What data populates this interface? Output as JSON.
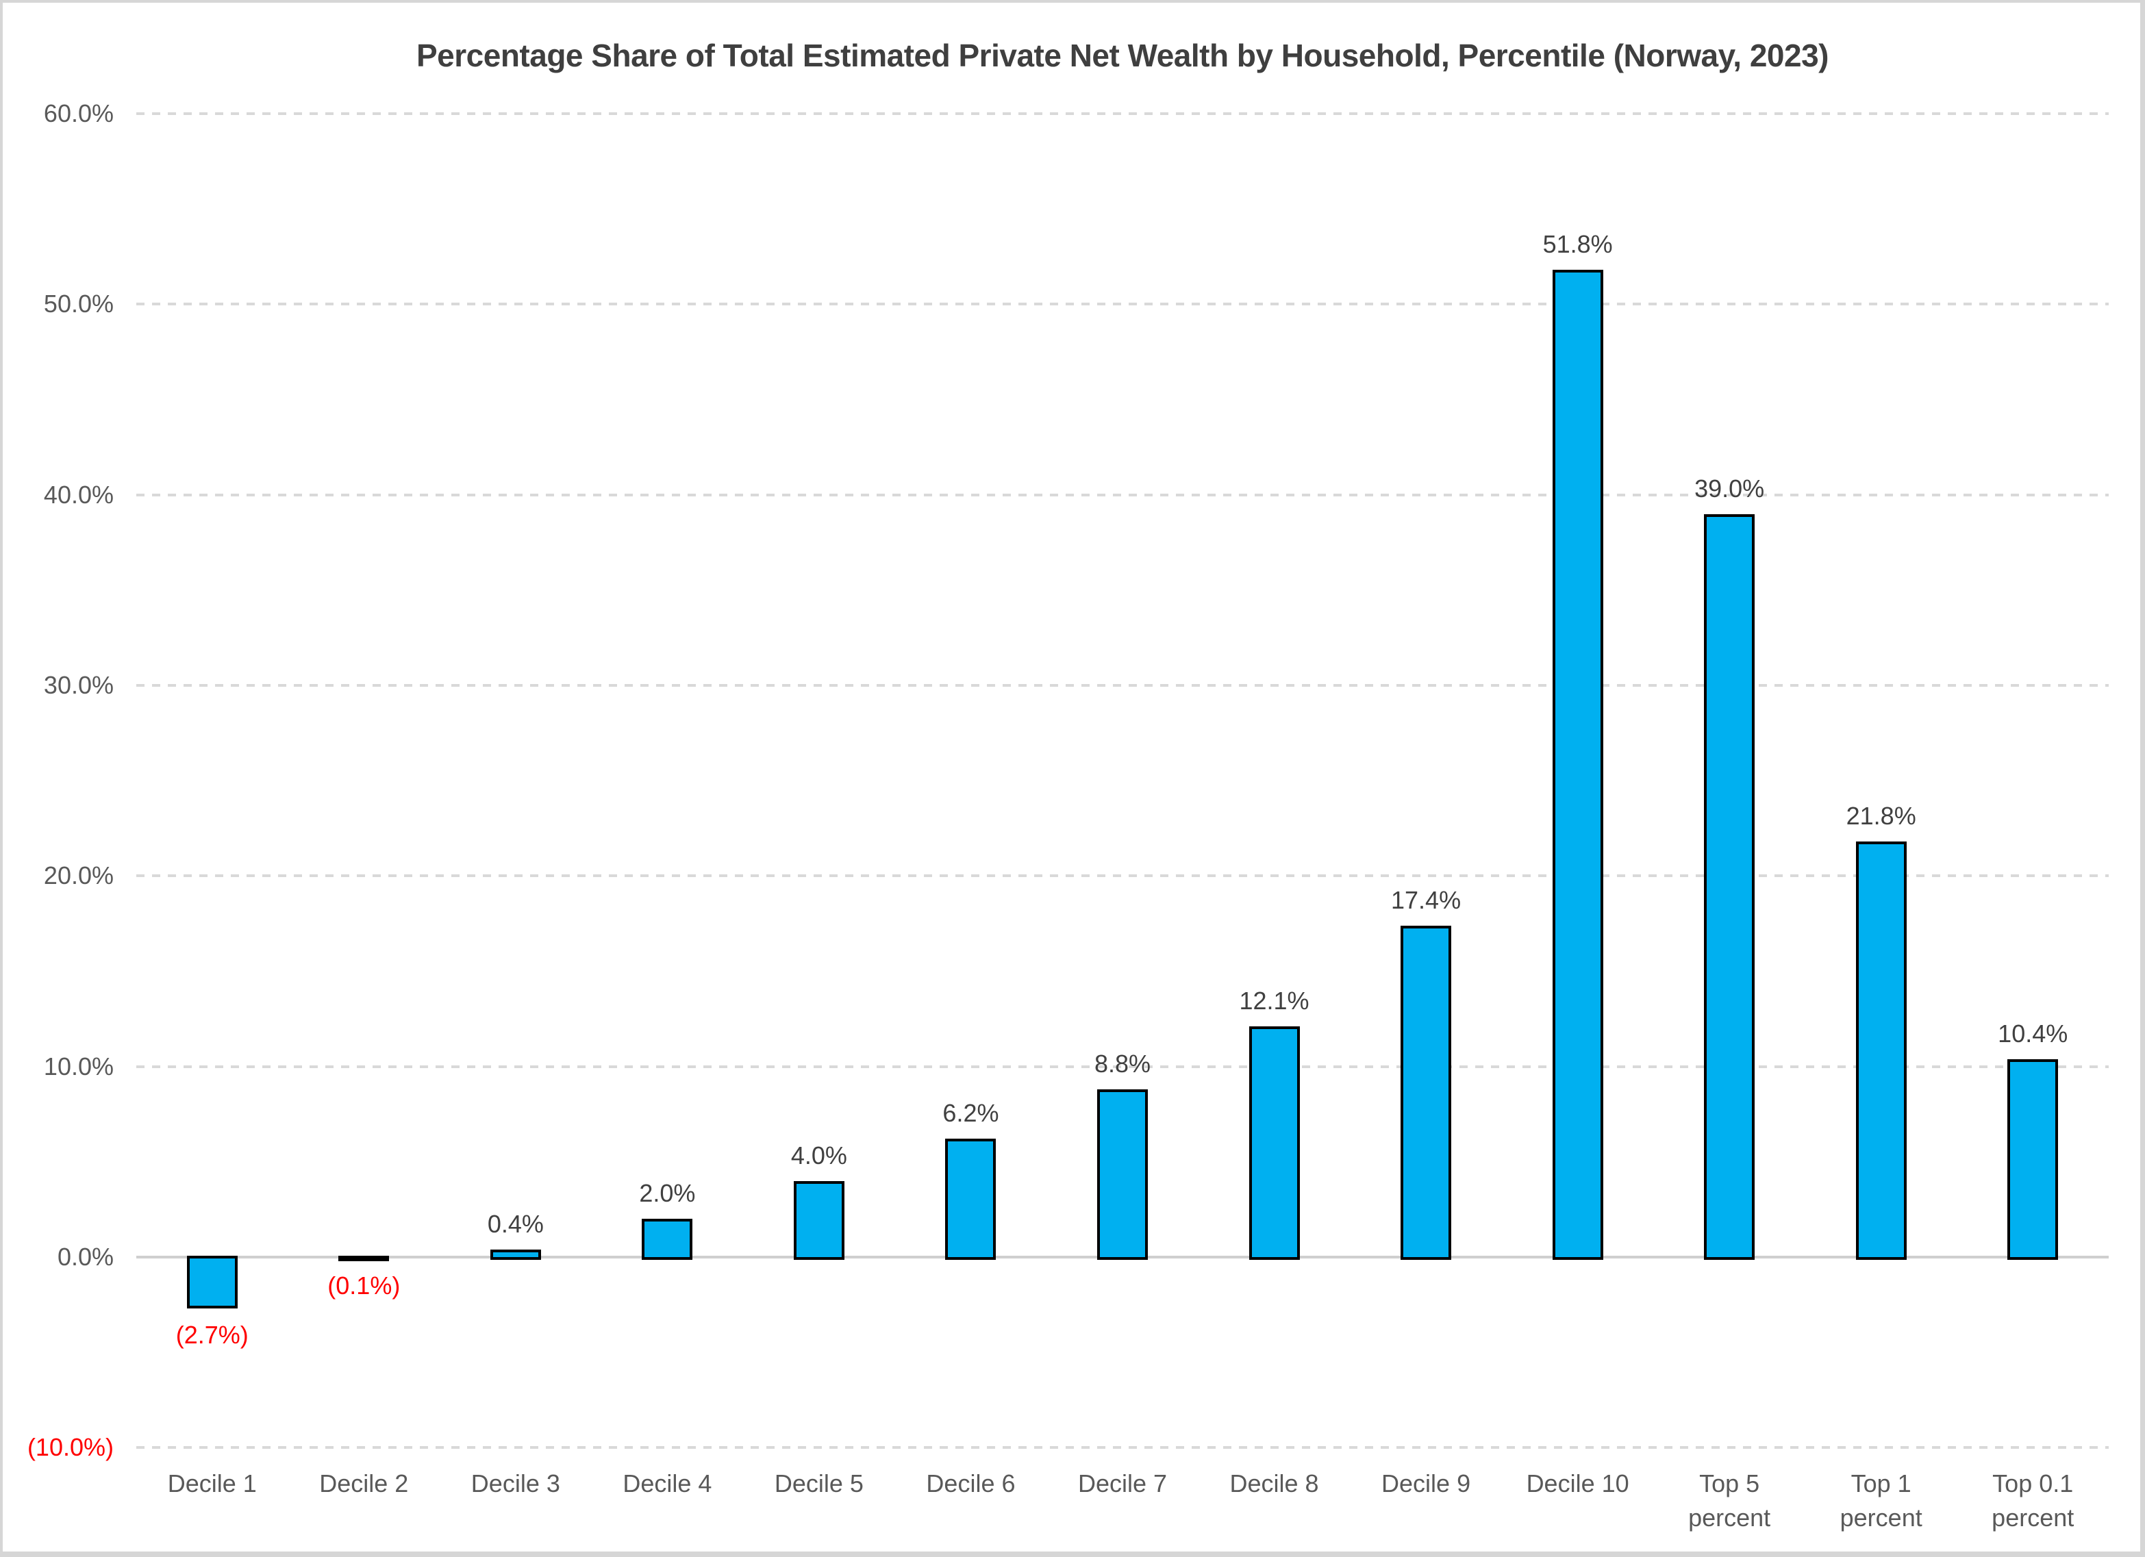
{
  "chart_data": {
    "type": "bar",
    "title": "Percentage Share of Total Estimated Private Net Wealth by Household, Percentile (Norway, 2023)",
    "categories": [
      "Decile 1",
      "Decile 2",
      "Decile 3",
      "Decile 4",
      "Decile 5",
      "Decile 6",
      "Decile 7",
      "Decile 8",
      "Decile 9",
      "Decile 10",
      "Top 5 percent",
      "Top 1 percent",
      "Top 0.1 percent"
    ],
    "category_lines": [
      [
        "Decile 1"
      ],
      [
        "Decile 2"
      ],
      [
        "Decile 3"
      ],
      [
        "Decile 4"
      ],
      [
        "Decile 5"
      ],
      [
        "Decile 6"
      ],
      [
        "Decile 7"
      ],
      [
        "Decile 8"
      ],
      [
        "Decile 9"
      ],
      [
        "Decile 10"
      ],
      [
        "Top 5",
        "percent"
      ],
      [
        "Top 1",
        "percent"
      ],
      [
        "Top 0.1",
        "percent"
      ]
    ],
    "values": [
      -2.7,
      -0.1,
      0.4,
      2.0,
      4.0,
      6.2,
      8.8,
      12.1,
      17.4,
      51.8,
      39.0,
      21.8,
      10.4
    ],
    "value_labels": [
      "(2.7%)",
      "(0.1%)",
      "0.4%",
      "2.0%",
      "4.0%",
      "6.2%",
      "8.8%",
      "12.1%",
      "17.4%",
      "51.8%",
      "39.0%",
      "21.8%",
      "10.4%"
    ],
    "y_ticks": [
      {
        "label": "60.0%",
        "value": 60
      },
      {
        "label": "50.0%",
        "value": 50
      },
      {
        "label": "40.0%",
        "value": 40
      },
      {
        "label": "30.0%",
        "value": 30
      },
      {
        "label": "20.0%",
        "value": 20
      },
      {
        "label": "10.0%",
        "value": 10
      },
      {
        "label": "0.0%",
        "value": 0
      },
      {
        "label": "(10.0%)",
        "value": -10
      }
    ],
    "ylim": [
      -10,
      60
    ],
    "xlabel": "",
    "ylabel": "",
    "grid": "horizontal-dashed",
    "legend": "none",
    "colors": {
      "bar_fill": "#00b0f0",
      "bar_border": "#000000",
      "positive_label": "#404040",
      "negative_label": "#ff0000",
      "axis_text": "#595959",
      "negative_axis_text": "#ff0000",
      "title_text": "#3f3f3f",
      "gridline": "#d9d9d9",
      "zero_line": "#cfcfcf",
      "frame_border": "#d6d6d6",
      "background": "#ffffff"
    }
  }
}
